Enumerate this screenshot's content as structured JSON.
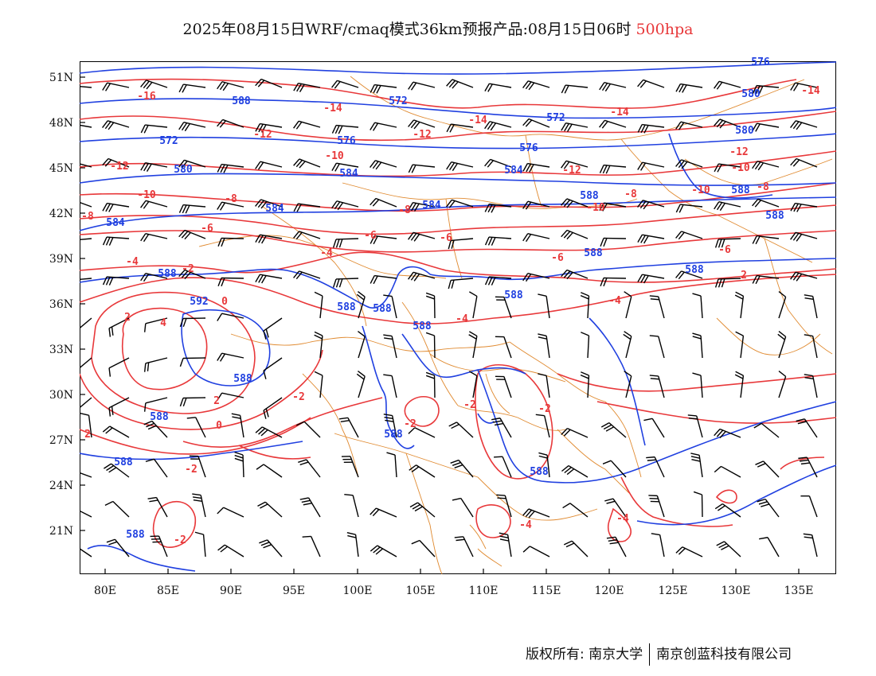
{
  "title": {
    "text": "2025年08月15日WRF/cmaq模式36km预报产品:08月15日06时",
    "level": "500hpa"
  },
  "axes": {
    "lat_labels": [
      "51N",
      "48N",
      "45N",
      "42N",
      "39N",
      "36N",
      "33N",
      "30N",
      "27N",
      "24N",
      "21N"
    ],
    "lon_labels": [
      "80E",
      "85E",
      "90E",
      "95E",
      "100E",
      "105E",
      "110E",
      "115E",
      "120E",
      "125E",
      "130E",
      "135E"
    ]
  },
  "colors": {
    "height_contour": "#2040e0",
    "temperature_contour": "#e8383a",
    "border": "#e08a30",
    "wind_barb": "#000000"
  },
  "height_labels": [
    "584",
    "588",
    "572",
    "572",
    "572",
    "576",
    "576",
    "576",
    "580",
    "580",
    "580",
    "584",
    "584",
    "584",
    "584",
    "588",
    "588",
    "588",
    "592",
    "588",
    "588",
    "588",
    "588",
    "588",
    "588",
    "588",
    "588",
    "588",
    "588",
    "588",
    "588",
    "588"
  ],
  "temp_labels": [
    "-14",
    "-16",
    "-14",
    "-14",
    "-14",
    "-12",
    "-12",
    "-12",
    "-12",
    "-12",
    "-10",
    "-10",
    "-10",
    "-10",
    "-10",
    "-8",
    "-8",
    "-8",
    "-8",
    "-8",
    "-6",
    "-6",
    "-6",
    "-6",
    "-6",
    "-4",
    "-4",
    "-4",
    "-4",
    "-4",
    "-4",
    "-2",
    "-2",
    "-2",
    "-2",
    "-2",
    "-2",
    "-2",
    "0",
    "0",
    "2",
    "2",
    "2",
    "2",
    "4"
  ],
  "copyright": {
    "left": "版权所有: 南京大学",
    "right": "南京创蓝科技有限公司"
  }
}
